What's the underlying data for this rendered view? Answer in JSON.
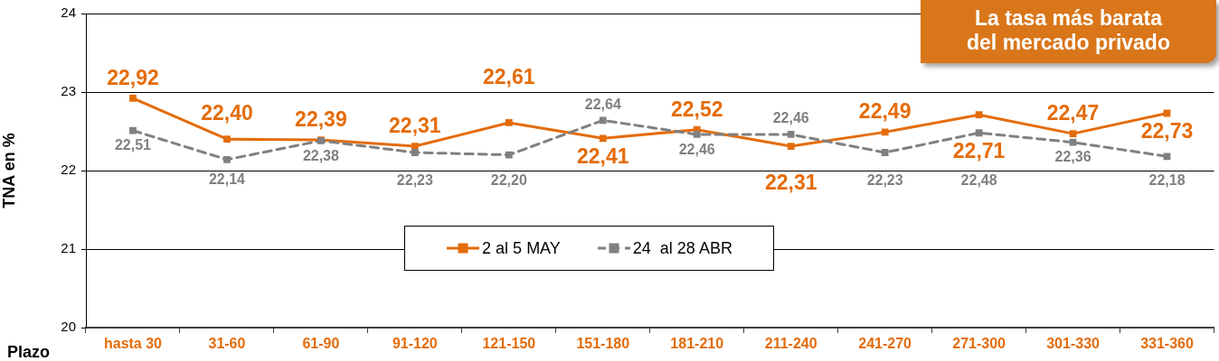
{
  "chart_data": {
    "type": "line",
    "categories": [
      "hasta 30",
      "31-60",
      "61-90",
      "91-120",
      "121-150",
      "151-180",
      "181-210",
      "211-240",
      "241-270",
      "271-300",
      "301-330",
      "331-360"
    ],
    "series": [
      {
        "name": "2 al 5 MAY",
        "color": "#e46c0a",
        "line_style": "solid",
        "values": [
          22.92,
          22.4,
          22.39,
          22.31,
          22.61,
          22.41,
          22.52,
          22.31,
          22.49,
          22.71,
          22.47,
          22.73
        ],
        "value_labels": [
          "22,92",
          "22,40",
          "22,39",
          "22,31",
          "22,61",
          "22,41",
          "22,52",
          "22,31",
          "22,49",
          "22,71",
          "22,47",
          "22,73"
        ]
      },
      {
        "name": "24  al 28 ABR",
        "color": "#808080",
        "line_style": "dashed",
        "values": [
          22.51,
          22.14,
          22.38,
          22.23,
          22.2,
          22.64,
          22.46,
          22.46,
          22.23,
          22.48,
          22.36,
          22.18
        ],
        "value_labels": [
          "22,51",
          "22,14",
          "22,38",
          "22,23",
          "22,20",
          "22,64",
          "22,46",
          "22,46",
          "22,23",
          "22,48",
          "22,36",
          "22,18"
        ]
      }
    ],
    "ylim": [
      20,
      24
    ],
    "yticks": [
      20,
      21,
      22,
      23,
      24
    ],
    "ylabel": "TNA en %",
    "xlabel": "Plazo",
    "grid": "y",
    "legend": "bottom",
    "marker": "square",
    "annotations": [
      "La tasa más barata del mercado privado"
    ]
  }
}
